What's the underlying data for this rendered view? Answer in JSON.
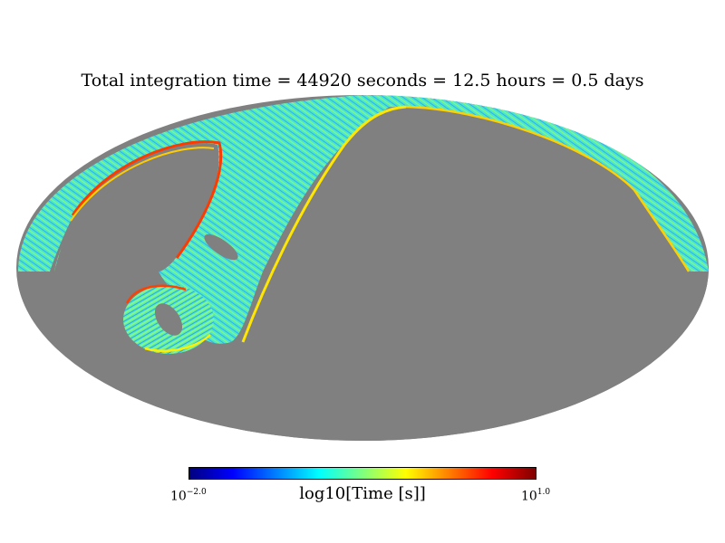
{
  "title": "Total integration time = 44920 seconds = 12.5 hours = 0.5 days",
  "projection": "Mollweide",
  "colors": {
    "background": "#ffffff",
    "unobserved": "#808080",
    "colormap": [
      "#00007f",
      "#0000ff",
      "#007fff",
      "#00ffff",
      "#7fff7f",
      "#ffff00",
      "#ff7f00",
      "#ff0000",
      "#7f0000"
    ]
  },
  "colorbar": {
    "label": "log10[Time [s]]",
    "min_base": "10",
    "min_exp": "−2.0",
    "max_base": "10",
    "max_exp": "1.0",
    "scale": "log"
  }
}
